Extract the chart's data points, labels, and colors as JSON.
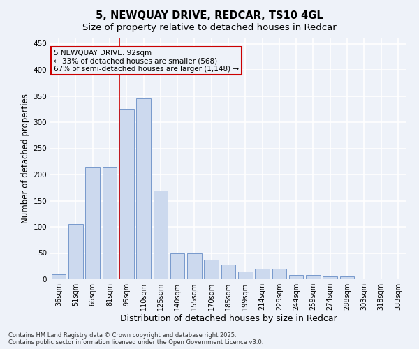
{
  "title_line1": "5, NEWQUAY DRIVE, REDCAR, TS10 4GL",
  "title_line2": "Size of property relative to detached houses in Redcar",
  "xlabel": "Distribution of detached houses by size in Redcar",
  "ylabel": "Number of detached properties",
  "categories": [
    "36sqm",
    "51sqm",
    "66sqm",
    "81sqm",
    "95sqm",
    "110sqm",
    "125sqm",
    "140sqm",
    "155sqm",
    "170sqm",
    "185sqm",
    "199sqm",
    "214sqm",
    "229sqm",
    "244sqm",
    "259sqm",
    "274sqm",
    "288sqm",
    "303sqm",
    "318sqm",
    "333sqm"
  ],
  "values": [
    10,
    105,
    215,
    215,
    325,
    345,
    170,
    50,
    50,
    38,
    28,
    15,
    20,
    20,
    8,
    8,
    5,
    5,
    2,
    2,
    2
  ],
  "bar_color": "#ccd9ee",
  "bar_edge_color": "#7799cc",
  "vline_color": "#cc0000",
  "annotation_box_edge_color": "#cc0000",
  "ylim": [
    0,
    460
  ],
  "yticks": [
    0,
    50,
    100,
    150,
    200,
    250,
    300,
    350,
    400,
    450
  ],
  "footer_line1": "Contains HM Land Registry data © Crown copyright and database right 2025.",
  "footer_line2": "Contains public sector information licensed under the Open Government Licence v3.0.",
  "bg_color": "#eef2f9",
  "grid_color": "#ffffff",
  "title_fontsize": 10.5,
  "subtitle_fontsize": 9.5,
  "axis_label_fontsize": 8.5,
  "tick_fontsize": 7,
  "footer_fontsize": 6,
  "annotation_fontsize": 7.5,
  "vline_bin_index": 4
}
